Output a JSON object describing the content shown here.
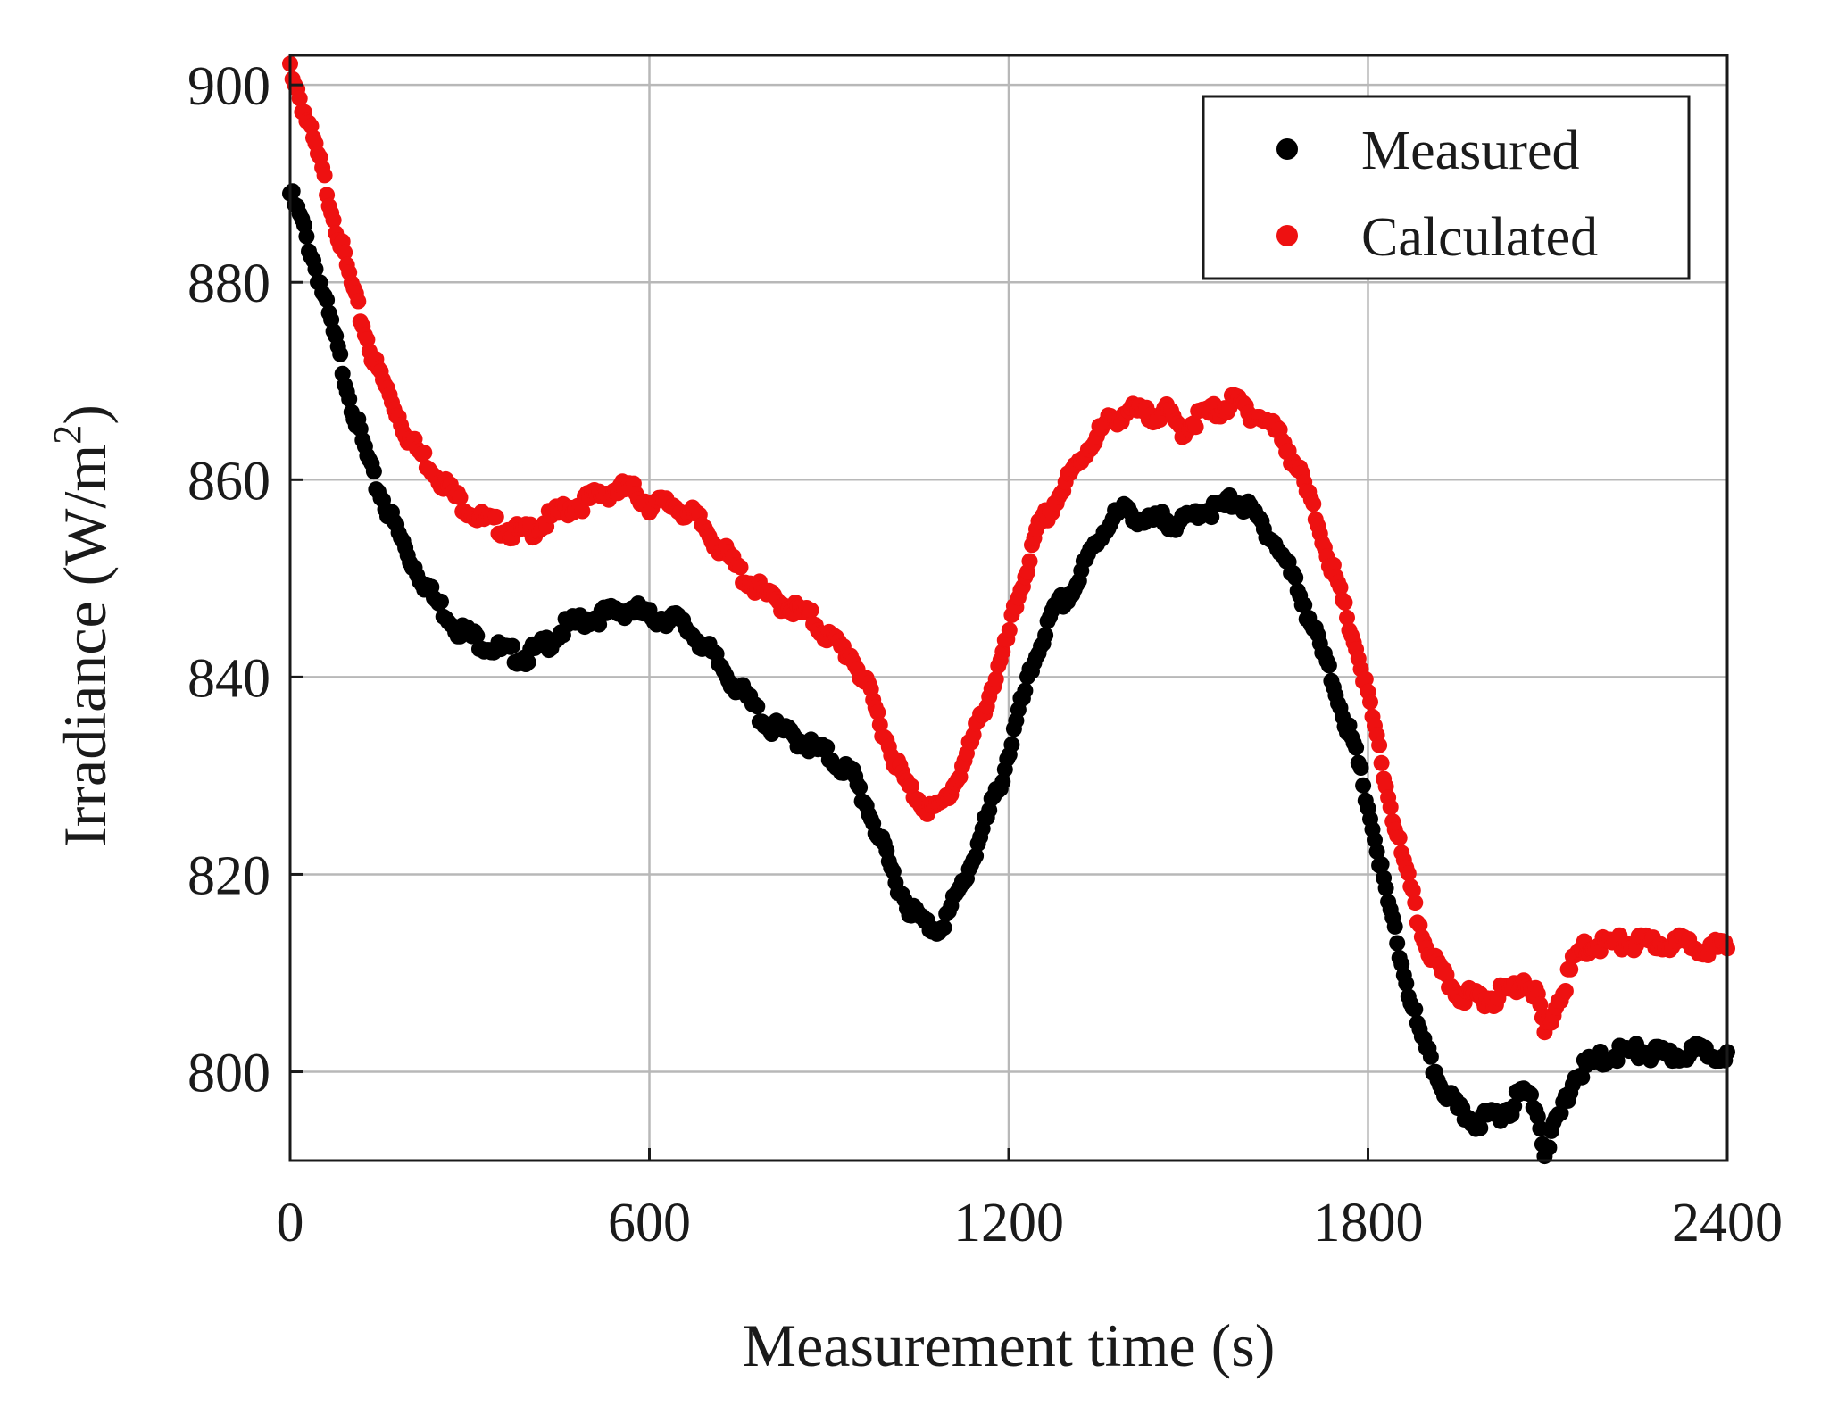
{
  "chart_data": {
    "type": "scatter",
    "title": "",
    "xlabel": "Measurement time (s)",
    "ylabel": "Irradiance (W/m",
    "ylabel_superscript": "2",
    "ylabel_suffix": ")",
    "xlim": [
      0,
      2400
    ],
    "ylim": [
      791,
      903
    ],
    "xticks": [
      0,
      600,
      1200,
      1800,
      2400
    ],
    "yticks": [
      800,
      820,
      840,
      860,
      880,
      900
    ],
    "xtick_labels": [
      "0",
      "600",
      "1200",
      "1800",
      "2400"
    ],
    "ytick_labels": [
      "800",
      "820",
      "840",
      "860",
      "880",
      "900"
    ],
    "grid": true,
    "legend_position": "top-right",
    "series": [
      {
        "name": "Measured",
        "color": "#000000",
        "points": [
          [
            0,
            889
          ],
          [
            20,
            886
          ],
          [
            50,
            880
          ],
          [
            80,
            873
          ],
          [
            110,
            866
          ],
          [
            140,
            860
          ],
          [
            170,
            856
          ],
          [
            200,
            852
          ],
          [
            240,
            848
          ],
          [
            280,
            845
          ],
          [
            320,
            843.5
          ],
          [
            360,
            842.5
          ],
          [
            390,
            842
          ],
          [
            420,
            843
          ],
          [
            460,
            845
          ],
          [
            500,
            846
          ],
          [
            540,
            846.5
          ],
          [
            570,
            847
          ],
          [
            600,
            846
          ],
          [
            640,
            846
          ],
          [
            680,
            844
          ],
          [
            720,
            841
          ],
          [
            760,
            838
          ],
          [
            800,
            835
          ],
          [
            840,
            834
          ],
          [
            870,
            833
          ],
          [
            900,
            832
          ],
          [
            940,
            830
          ],
          [
            970,
            826
          ],
          [
            1000,
            821
          ],
          [
            1030,
            817
          ],
          [
            1060,
            815
          ],
          [
            1080,
            814.5
          ],
          [
            1100,
            816
          ],
          [
            1130,
            820
          ],
          [
            1160,
            825
          ],
          [
            1190,
            830
          ],
          [
            1220,
            837
          ],
          [
            1250,
            843
          ],
          [
            1280,
            847
          ],
          [
            1310,
            849
          ],
          [
            1340,
            853
          ],
          [
            1370,
            856
          ],
          [
            1400,
            857
          ],
          [
            1430,
            855.5
          ],
          [
            1460,
            856
          ],
          [
            1490,
            855.5
          ],
          [
            1520,
            857
          ],
          [
            1550,
            857
          ],
          [
            1580,
            858
          ],
          [
            1600,
            857
          ],
          [
            1630,
            855
          ],
          [
            1660,
            852
          ],
          [
            1690,
            848
          ],
          [
            1720,
            843
          ],
          [
            1750,
            838
          ],
          [
            1780,
            832
          ],
          [
            1800,
            827
          ],
          [
            1830,
            818
          ],
          [
            1860,
            810
          ],
          [
            1890,
            803
          ],
          [
            1920,
            799
          ],
          [
            1950,
            796
          ],
          [
            1980,
            795
          ],
          [
            2010,
            795.5
          ],
          [
            2040,
            796.5
          ],
          [
            2060,
            798
          ],
          [
            2080,
            797
          ],
          [
            2095,
            792
          ],
          [
            2110,
            794
          ],
          [
            2130,
            797
          ],
          [
            2150,
            800
          ],
          [
            2180,
            801
          ],
          [
            2220,
            802
          ],
          [
            2260,
            802
          ],
          [
            2300,
            801.5
          ],
          [
            2340,
            802
          ],
          [
            2380,
            802
          ],
          [
            2400,
            802
          ]
        ]
      },
      {
        "name": "Calculated",
        "color": "#ee1111",
        "points": [
          [
            0,
            902
          ],
          [
            20,
            898
          ],
          [
            50,
            892
          ],
          [
            80,
            885
          ],
          [
            110,
            878
          ],
          [
            140,
            872
          ],
          [
            170,
            868
          ],
          [
            200,
            864
          ],
          [
            240,
            861
          ],
          [
            280,
            858
          ],
          [
            320,
            856
          ],
          [
            360,
            855
          ],
          [
            390,
            854.5
          ],
          [
            420,
            855.5
          ],
          [
            460,
            857
          ],
          [
            500,
            858
          ],
          [
            540,
            859
          ],
          [
            570,
            859
          ],
          [
            600,
            857.5
          ],
          [
            640,
            857.5
          ],
          [
            680,
            856
          ],
          [
            720,
            853
          ],
          [
            760,
            850
          ],
          [
            800,
            848
          ],
          [
            840,
            847
          ],
          [
            870,
            846
          ],
          [
            900,
            844
          ],
          [
            940,
            842
          ],
          [
            970,
            838
          ],
          [
            1000,
            833
          ],
          [
            1030,
            829
          ],
          [
            1060,
            827
          ],
          [
            1080,
            826.5
          ],
          [
            1100,
            828
          ],
          [
            1130,
            832
          ],
          [
            1160,
            837
          ],
          [
            1190,
            842
          ],
          [
            1220,
            849
          ],
          [
            1250,
            855
          ],
          [
            1280,
            858
          ],
          [
            1310,
            861
          ],
          [
            1340,
            864
          ],
          [
            1370,
            866
          ],
          [
            1400,
            867
          ],
          [
            1430,
            866.5
          ],
          [
            1460,
            867
          ],
          [
            1490,
            865
          ],
          [
            1520,
            866.5
          ],
          [
            1550,
            867
          ],
          [
            1580,
            868
          ],
          [
            1600,
            867
          ],
          [
            1630,
            866
          ],
          [
            1660,
            864
          ],
          [
            1690,
            860
          ],
          [
            1720,
            855
          ],
          [
            1750,
            849
          ],
          [
            1780,
            843
          ],
          [
            1800,
            838
          ],
          [
            1830,
            829
          ],
          [
            1860,
            821
          ],
          [
            1890,
            814
          ],
          [
            1920,
            810
          ],
          [
            1950,
            808
          ],
          [
            1980,
            807.5
          ],
          [
            2010,
            807.5
          ],
          [
            2040,
            808.5
          ],
          [
            2060,
            809.5
          ],
          [
            2080,
            808
          ],
          [
            2095,
            804
          ],
          [
            2110,
            806
          ],
          [
            2130,
            809
          ],
          [
            2150,
            812
          ],
          [
            2180,
            813
          ],
          [
            2220,
            813
          ],
          [
            2260,
            813
          ],
          [
            2300,
            813
          ],
          [
            2340,
            813
          ],
          [
            2380,
            812.5
          ],
          [
            2400,
            812.5
          ]
        ]
      }
    ]
  }
}
